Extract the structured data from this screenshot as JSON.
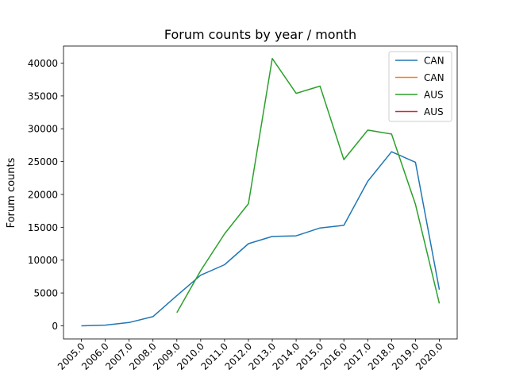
{
  "chart_data": {
    "type": "line",
    "title": "Forum counts by year / month",
    "xlabel": "",
    "ylabel": "Forum counts",
    "x": [
      2005.0,
      2006.0,
      2007.0,
      2008.0,
      2009.0,
      2010.0,
      2011.0,
      2012.0,
      2013.0,
      2014.0,
      2015.0,
      2016.0,
      2017.0,
      2018.0,
      2019.0,
      2020.0
    ],
    "x_tick_labels": [
      "2005.0",
      "2006.0",
      "2007.0",
      "2008.0",
      "2009.0",
      "2010.0",
      "2011.0",
      "2012.0",
      "2013.0",
      "2014.0",
      "2015.0",
      "2016.0",
      "2017.0",
      "2018.0",
      "2019.0",
      "2020.0"
    ],
    "xlim": [
      2004.25,
      2020.75
    ],
    "ylim": [
      -2000,
      42600
    ],
    "y_ticks": [
      0,
      5000,
      10000,
      15000,
      20000,
      25000,
      30000,
      35000,
      40000
    ],
    "y_tick_labels": [
      "0",
      "5000",
      "10000",
      "15000",
      "20000",
      "25000",
      "30000",
      "35000",
      "40000"
    ],
    "grid": false,
    "legend_position": "top-right",
    "series": [
      {
        "name": "CAN",
        "color": "#1f77b4",
        "values": [
          0,
          100,
          500,
          1400,
          4600,
          7700,
          9300,
          12500,
          13600,
          13700,
          14900,
          15300,
          22000,
          26500,
          24900,
          5500
        ]
      },
      {
        "name": "CAN",
        "color": "#ff7f0e",
        "values": [
          null,
          null,
          null,
          null,
          null,
          null,
          null,
          null,
          null,
          null,
          null,
          null,
          null,
          null,
          null,
          null
        ]
      },
      {
        "name": "AUS",
        "color": "#2ca02c",
        "values": [
          null,
          null,
          null,
          null,
          2000,
          8400,
          14000,
          18600,
          40700,
          35400,
          36500,
          25300,
          29800,
          29200,
          18500,
          3400
        ]
      },
      {
        "name": "AUS",
        "color": "#d62728",
        "values": [
          null,
          null,
          null,
          null,
          null,
          null,
          null,
          null,
          null,
          null,
          null,
          null,
          null,
          null,
          null,
          null
        ]
      }
    ]
  }
}
